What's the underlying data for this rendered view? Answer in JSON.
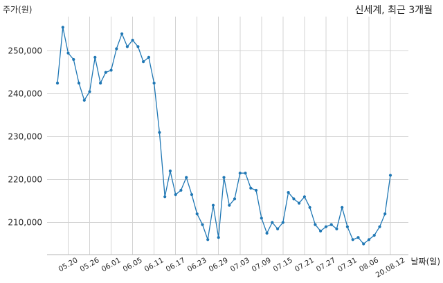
{
  "chart_data": {
    "type": "line",
    "title": "신세계, 최근 3개월",
    "xlabel": "날짜(일)",
    "ylabel": "주가(원)",
    "x": [
      "05.18",
      "05.19",
      "05.20",
      "05.21",
      "05.22",
      "05.25",
      "05.26",
      "05.27",
      "05.28",
      "05.29",
      "06.01",
      "06.02",
      "06.03",
      "06.04",
      "06.05",
      "06.08",
      "06.09",
      "06.10",
      "06.11",
      "06.12",
      "06.15",
      "06.16",
      "06.17",
      "06.18",
      "06.19",
      "06.22",
      "06.23",
      "06.24",
      "06.25",
      "06.26",
      "06.29",
      "06.30",
      "07.01",
      "07.02",
      "07.03",
      "07.06",
      "07.07",
      "07.08",
      "07.09",
      "07.10",
      "07.13",
      "07.14",
      "07.15",
      "07.16",
      "07.17",
      "07.20",
      "07.21",
      "07.22",
      "07.23",
      "07.24",
      "07.27",
      "07.28",
      "07.29",
      "07.30",
      "07.31",
      "08.03",
      "08.04",
      "08.05",
      "08.06",
      "08.07",
      "08.10",
      "08.11",
      "08.12"
    ],
    "y": [
      242500,
      255500,
      249500,
      248000,
      242500,
      238500,
      240500,
      248500,
      242500,
      245000,
      245500,
      250500,
      254000,
      251000,
      252500,
      251000,
      247500,
      248500,
      242500,
      231000,
      216000,
      222000,
      216500,
      217500,
      220500,
      216500,
      212000,
      209500,
      206000,
      214000,
      206500,
      220500,
      214000,
      215500,
      221500,
      221500,
      218000,
      217500,
      211000,
      207500,
      210000,
      208500,
      210000,
      217000,
      215500,
      214500,
      216000,
      213500,
      209500,
      208000,
      209000,
      209500,
      208500,
      213500,
      209000,
      206000,
      206500,
      205000,
      206000,
      207000,
      209000,
      212000,
      221000
    ],
    "x_tick_labels": [
      "05.20",
      "05.26",
      "06.01",
      "06.05",
      "06.11",
      "06.17",
      "06.23",
      "06.29",
      "07.03",
      "07.09",
      "07.15",
      "07.21",
      "07.27",
      "07.31",
      "08.06",
      "20.08.12"
    ],
    "y_ticks": [
      210000,
      220000,
      230000,
      240000,
      250000
    ],
    "y_tick_labels": [
      "210,000",
      "220,000",
      "230,000",
      "240,000",
      "250,000"
    ],
    "ylim": [
      202500,
      258000
    ],
    "grid": true,
    "line_color": "#1f77b4"
  }
}
